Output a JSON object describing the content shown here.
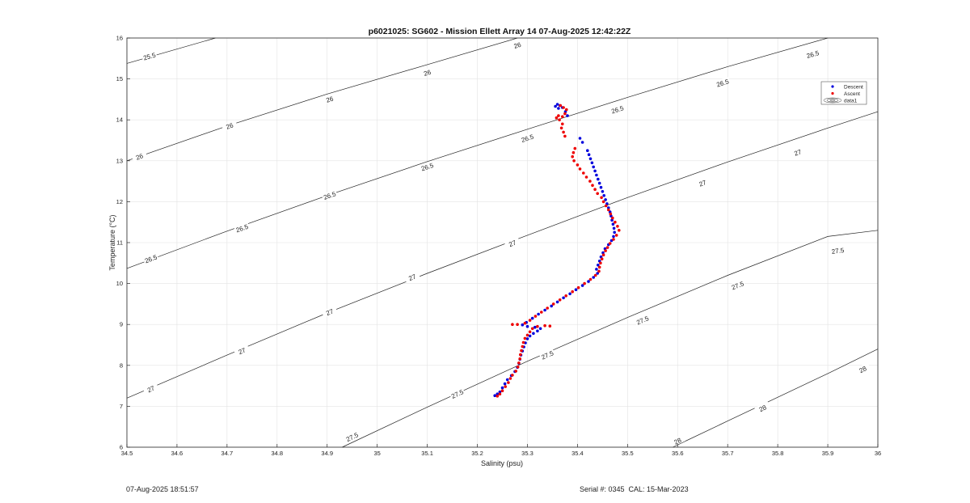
{
  "chart_data": {
    "type": "scatter",
    "title": "p6021025: SG602 - Mission Ellett Array 14 07-Aug-2025 12:42:22Z",
    "xlabel": "Salinity (psu)",
    "ylabel": "Temperature (°C)",
    "xlim": [
      34.5,
      36
    ],
    "ylim": [
      6,
      16
    ],
    "xticks": [
      34.5,
      34.6,
      34.7,
      34.8,
      34.9,
      35,
      35.1,
      35.2,
      35.3,
      35.4,
      35.5,
      35.6,
      35.7,
      35.8,
      35.9,
      36
    ],
    "xtick_labels": [
      "34.5",
      "34.6",
      "34.7",
      "34.8",
      "34.9",
      "35",
      "35.1",
      "35.2",
      "35.3",
      "35.4",
      "35.5",
      "35.6",
      "35.7",
      "35.8",
      "35.9",
      "36"
    ],
    "yticks": [
      6,
      7,
      8,
      9,
      10,
      11,
      12,
      13,
      14,
      15,
      16
    ],
    "ytick_labels": [
      "6",
      "7",
      "8",
      "9",
      "10",
      "11",
      "12",
      "13",
      "14",
      "15",
      "16"
    ],
    "grid": true,
    "legend_position": "top-right",
    "legend": [
      "Descent",
      "Ascent",
      "data1"
    ],
    "colors": {
      "descent": "#0000dd",
      "ascent": "#ee0000",
      "contour": "#222222",
      "grid": "#e3e3e3"
    },
    "contours": [
      {
        "level": "25.5",
        "points": [
          [
            34.5,
            15.38
          ],
          [
            34.677,
            16.0
          ]
        ],
        "labels": [
          [
            34.545,
            15.55
          ]
        ]
      },
      {
        "level": "26",
        "points": [
          [
            34.5,
            13.0
          ],
          [
            34.7,
            13.85
          ],
          [
            34.9,
            14.63
          ],
          [
            35.1,
            15.35
          ],
          [
            35.28,
            16.0
          ]
        ],
        "labels": [
          [
            34.525,
            13.1
          ],
          [
            34.705,
            13.85
          ],
          [
            34.905,
            14.5
          ],
          [
            35.1,
            15.15
          ],
          [
            35.28,
            15.82
          ]
        ]
      },
      {
        "level": "26.5",
        "points": [
          [
            34.5,
            10.37
          ],
          [
            34.7,
            11.28
          ],
          [
            34.9,
            12.15
          ],
          [
            35.1,
            12.98
          ],
          [
            35.3,
            13.77
          ],
          [
            35.5,
            14.55
          ],
          [
            35.7,
            15.3
          ],
          [
            35.9,
            16.0
          ]
        ],
        "labels": [
          [
            34.548,
            10.6
          ],
          [
            34.73,
            11.35
          ],
          [
            34.905,
            12.15
          ],
          [
            35.1,
            12.85
          ],
          [
            35.3,
            13.55
          ],
          [
            35.48,
            14.25
          ],
          [
            35.69,
            14.9
          ],
          [
            35.87,
            15.6
          ]
        ]
      },
      {
        "level": "27",
        "points": [
          [
            34.5,
            7.2
          ],
          [
            34.7,
            8.25
          ],
          [
            34.9,
            9.28
          ],
          [
            35.1,
            10.25
          ],
          [
            35.3,
            11.18
          ],
          [
            35.5,
            12.1
          ],
          [
            35.7,
            12.97
          ],
          [
            35.9,
            13.8
          ],
          [
            36.0,
            14.2
          ]
        ],
        "labels": [
          [
            34.548,
            7.42
          ],
          [
            34.73,
            8.35
          ],
          [
            34.905,
            9.3
          ],
          [
            35.07,
            10.15
          ],
          [
            35.27,
            10.98
          ],
          [
            35.65,
            12.45
          ],
          [
            35.84,
            13.2
          ]
        ]
      },
      {
        "level": "27.5",
        "points": [
          [
            34.93,
            6.0
          ],
          [
            35.1,
            6.98
          ],
          [
            35.3,
            8.1
          ],
          [
            35.5,
            9.17
          ],
          [
            35.7,
            10.2
          ],
          [
            35.9,
            11.15
          ],
          [
            36.0,
            11.3
          ]
        ],
        "labels": [
          [
            34.95,
            6.25
          ],
          [
            35.16,
            7.3
          ],
          [
            35.34,
            8.25
          ],
          [
            35.53,
            9.1
          ],
          [
            35.72,
            9.95
          ],
          [
            35.92,
            10.8
          ]
        ]
      },
      {
        "level": "28",
        "points": [
          [
            35.59,
            6.0
          ],
          [
            35.7,
            6.64
          ],
          [
            35.9,
            7.8
          ],
          [
            36.0,
            8.4
          ]
        ],
        "labels": [
          [
            35.6,
            6.15
          ],
          [
            35.77,
            6.95
          ],
          [
            35.97,
            7.9
          ]
        ]
      }
    ],
    "series": [
      {
        "name": "Descent",
        "points": [
          [
            35.235,
            7.26
          ],
          [
            35.24,
            7.3
          ],
          [
            35.245,
            7.35
          ],
          [
            35.25,
            7.45
          ],
          [
            35.255,
            7.55
          ],
          [
            35.26,
            7.65
          ],
          [
            35.268,
            7.75
          ],
          [
            35.275,
            7.85
          ],
          [
            35.28,
            7.95
          ],
          [
            35.283,
            8.05
          ],
          [
            35.285,
            8.15
          ],
          [
            35.287,
            8.25
          ],
          [
            35.29,
            8.35
          ],
          [
            35.293,
            8.45
          ],
          [
            35.296,
            8.55
          ],
          [
            35.3,
            8.65
          ],
          [
            35.305,
            8.72
          ],
          [
            35.312,
            8.78
          ],
          [
            35.32,
            8.84
          ],
          [
            35.326,
            8.9
          ],
          [
            35.315,
            8.93
          ],
          [
            35.3,
            8.95
          ],
          [
            35.29,
            8.99
          ],
          [
            35.298,
            9.05
          ],
          [
            35.31,
            9.15
          ],
          [
            35.322,
            9.25
          ],
          [
            35.335,
            9.35
          ],
          [
            35.348,
            9.45
          ],
          [
            35.36,
            9.55
          ],
          [
            35.372,
            9.65
          ],
          [
            35.385,
            9.75
          ],
          [
            35.397,
            9.85
          ],
          [
            35.41,
            9.95
          ],
          [
            35.422,
            10.05
          ],
          [
            35.432,
            10.15
          ],
          [
            35.44,
            10.25
          ],
          [
            35.438,
            10.35
          ],
          [
            35.441,
            10.45
          ],
          [
            35.444,
            10.55
          ],
          [
            35.447,
            10.65
          ],
          [
            35.451,
            10.75
          ],
          [
            35.455,
            10.85
          ],
          [
            35.462,
            10.95
          ],
          [
            35.468,
            11.05
          ],
          [
            35.472,
            11.15
          ],
          [
            35.474,
            11.25
          ],
          [
            35.473,
            11.35
          ],
          [
            35.471,
            11.45
          ],
          [
            35.469,
            11.55
          ],
          [
            35.467,
            11.65
          ],
          [
            35.465,
            11.75
          ],
          [
            35.462,
            11.85
          ],
          [
            35.459,
            11.95
          ],
          [
            35.456,
            12.05
          ],
          [
            35.453,
            12.15
          ],
          [
            35.45,
            12.25
          ],
          [
            35.447,
            12.35
          ],
          [
            35.444,
            12.45
          ],
          [
            35.441,
            12.55
          ],
          [
            35.438,
            12.65
          ],
          [
            35.435,
            12.75
          ],
          [
            35.432,
            12.85
          ],
          [
            35.429,
            12.95
          ],
          [
            35.426,
            13.05
          ],
          [
            35.423,
            13.15
          ],
          [
            35.42,
            13.25
          ],
          [
            35.41,
            13.45
          ],
          [
            35.405,
            13.55
          ],
          [
            35.38,
            14.1
          ],
          [
            35.376,
            14.2
          ],
          [
            35.37,
            14.3
          ],
          [
            35.365,
            14.35
          ],
          [
            35.36,
            14.38
          ],
          [
            35.356,
            14.33
          ],
          [
            35.362,
            14.28
          ]
        ]
      },
      {
        "name": "Ascent",
        "points": [
          [
            35.24,
            7.25
          ],
          [
            35.245,
            7.3
          ],
          [
            35.25,
            7.38
          ],
          [
            35.256,
            7.48
          ],
          [
            35.262,
            7.58
          ],
          [
            35.266,
            7.68
          ],
          [
            35.27,
            7.76
          ],
          [
            35.277,
            7.86
          ],
          [
            35.281,
            7.96
          ],
          [
            35.283,
            8.06
          ],
          [
            35.285,
            8.16
          ],
          [
            35.286,
            8.26
          ],
          [
            35.288,
            8.36
          ],
          [
            35.29,
            8.46
          ],
          [
            35.292,
            8.56
          ],
          [
            35.295,
            8.66
          ],
          [
            35.3,
            8.74
          ],
          [
            35.305,
            8.82
          ],
          [
            35.31,
            8.9
          ],
          [
            35.32,
            8.95
          ],
          [
            35.335,
            8.97
          ],
          [
            35.345,
            8.96
          ],
          [
            35.28,
            9.0
          ],
          [
            35.27,
            9.0
          ],
          [
            35.295,
            9.03
          ],
          [
            35.305,
            9.1
          ],
          [
            35.316,
            9.2
          ],
          [
            35.328,
            9.3
          ],
          [
            35.34,
            9.4
          ],
          [
            35.352,
            9.5
          ],
          [
            35.365,
            9.6
          ],
          [
            35.377,
            9.7
          ],
          [
            35.39,
            9.8
          ],
          [
            35.402,
            9.9
          ],
          [
            35.414,
            10.0
          ],
          [
            35.426,
            10.1
          ],
          [
            35.436,
            10.2
          ],
          [
            35.443,
            10.3
          ],
          [
            35.444,
            10.4
          ],
          [
            35.446,
            10.5
          ],
          [
            35.449,
            10.6
          ],
          [
            35.452,
            10.7
          ],
          [
            35.456,
            10.8
          ],
          [
            35.46,
            10.88
          ],
          [
            35.465,
            10.98
          ],
          [
            35.472,
            11.08
          ],
          [
            35.478,
            11.18
          ],
          [
            35.483,
            11.3
          ],
          [
            35.48,
            11.4
          ],
          [
            35.475,
            11.5
          ],
          [
            35.47,
            11.6
          ],
          [
            35.466,
            11.7
          ],
          [
            35.462,
            11.8
          ],
          [
            35.457,
            11.9
          ],
          [
            35.452,
            12.0
          ],
          [
            35.448,
            12.1
          ],
          [
            35.44,
            12.2
          ],
          [
            35.435,
            12.3
          ],
          [
            35.43,
            12.4
          ],
          [
            35.425,
            12.5
          ],
          [
            35.418,
            12.6
          ],
          [
            35.412,
            12.7
          ],
          [
            35.405,
            12.8
          ],
          [
            35.4,
            12.9
          ],
          [
            35.393,
            13.0
          ],
          [
            35.39,
            13.1
          ],
          [
            35.392,
            13.2
          ],
          [
            35.395,
            13.3
          ],
          [
            35.375,
            13.6
          ],
          [
            35.372,
            13.7
          ],
          [
            35.368,
            13.8
          ],
          [
            35.37,
            13.9
          ],
          [
            35.364,
            14.0
          ],
          [
            35.362,
            14.1
          ],
          [
            35.358,
            14.05
          ],
          [
            35.37,
            14.08
          ],
          [
            35.375,
            14.15
          ],
          [
            35.378,
            14.25
          ],
          [
            35.372,
            14.3
          ],
          [
            35.366,
            14.35
          ]
        ]
      }
    ]
  },
  "footer": {
    "left": "07-Aug-2025 18:51:57",
    "right": "Serial #: 0345  CAL: 15-Mar-2023"
  }
}
